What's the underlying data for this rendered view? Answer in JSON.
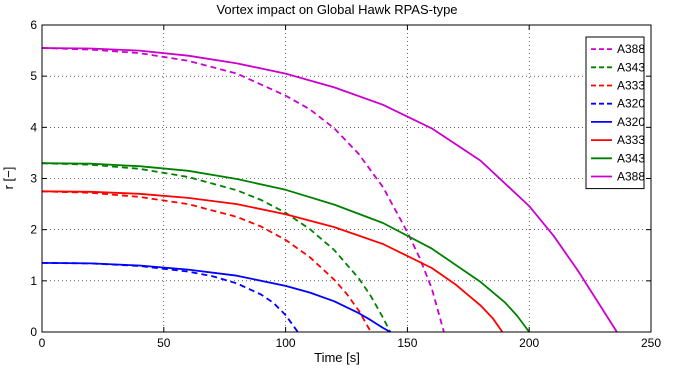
{
  "chart_data": {
    "type": "line",
    "title": "Vortex impact on Global Hawk RPAS-type",
    "xlabel": "Time [s]",
    "ylabel": "r [−]",
    "xlim": [
      0,
      250
    ],
    "ylim": [
      0,
      6
    ],
    "xticks": [
      0,
      50,
      100,
      150,
      200,
      250
    ],
    "yticks": [
      0,
      1,
      2,
      3,
      4,
      5,
      6
    ],
    "grid": true,
    "legend_position": "top-right",
    "series": [
      {
        "name": "A388",
        "style": "dashed",
        "color": "#cc00cc",
        "x": [
          0,
          20,
          40,
          60,
          80,
          100,
          110,
          120,
          130,
          140,
          150,
          155,
          160,
          165
        ],
        "y": [
          5.55,
          5.52,
          5.45,
          5.3,
          5.05,
          4.62,
          4.35,
          3.98,
          3.48,
          2.83,
          1.95,
          1.45,
          0.85,
          0.0
        ]
      },
      {
        "name": "A343",
        "style": "dashed",
        "color": "#008000",
        "x": [
          0,
          20,
          40,
          60,
          80,
          90,
          100,
          110,
          120,
          130,
          135,
          140,
          143
        ],
        "y": [
          3.3,
          3.27,
          3.19,
          3.03,
          2.77,
          2.58,
          2.33,
          2.01,
          1.6,
          1.05,
          0.7,
          0.28,
          0.0
        ]
      },
      {
        "name": "A333",
        "style": "dashed",
        "color": "#ff0000",
        "x": [
          0,
          20,
          40,
          60,
          80,
          90,
          100,
          110,
          120,
          125,
          130,
          135
        ],
        "y": [
          2.75,
          2.72,
          2.64,
          2.5,
          2.25,
          2.06,
          1.8,
          1.46,
          1.02,
          0.75,
          0.42,
          0.0
        ]
      },
      {
        "name": "A320",
        "style": "dashed",
        "color": "#0000ff",
        "x": [
          0,
          20,
          40,
          60,
          70,
          80,
          90,
          95,
          100,
          105
        ],
        "y": [
          1.35,
          1.34,
          1.29,
          1.18,
          1.09,
          0.95,
          0.73,
          0.57,
          0.33,
          0.0
        ]
      },
      {
        "name": "A320",
        "style": "solid",
        "color": "#0000ff",
        "x": [
          0,
          20,
          40,
          60,
          80,
          100,
          110,
          120,
          130,
          135,
          140,
          143
        ],
        "y": [
          1.35,
          1.34,
          1.3,
          1.22,
          1.1,
          0.9,
          0.77,
          0.6,
          0.37,
          0.23,
          0.08,
          0.0
        ]
      },
      {
        "name": "A333",
        "style": "solid",
        "color": "#ff0000",
        "x": [
          0,
          20,
          40,
          60,
          80,
          100,
          120,
          140,
          160,
          170,
          180,
          185,
          189
        ],
        "y": [
          2.75,
          2.74,
          2.7,
          2.62,
          2.5,
          2.3,
          2.05,
          1.72,
          1.25,
          0.92,
          0.52,
          0.27,
          0.0
        ]
      },
      {
        "name": "A343",
        "style": "solid",
        "color": "#008000",
        "x": [
          0,
          20,
          40,
          60,
          80,
          100,
          120,
          140,
          160,
          180,
          190,
          195,
          200
        ],
        "y": [
          3.3,
          3.29,
          3.24,
          3.15,
          2.99,
          2.78,
          2.49,
          2.13,
          1.63,
          0.98,
          0.58,
          0.32,
          0.0
        ]
      },
      {
        "name": "A388",
        "style": "solid",
        "color": "#cc00cc",
        "x": [
          0,
          20,
          40,
          60,
          80,
          100,
          120,
          140,
          160,
          180,
          200,
          210,
          220,
          230,
          236
        ],
        "y": [
          5.55,
          5.54,
          5.5,
          5.4,
          5.25,
          5.05,
          4.78,
          4.44,
          3.98,
          3.35,
          2.46,
          1.88,
          1.2,
          0.45,
          0.0
        ]
      }
    ]
  }
}
